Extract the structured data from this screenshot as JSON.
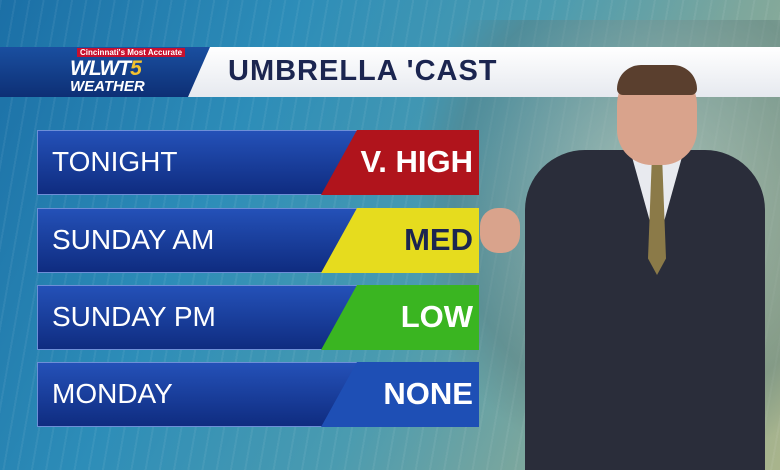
{
  "logo": {
    "tagline": "Cincinnati's Most Accurate",
    "name": "WLWT",
    "channel": "5",
    "sub": "WEATHER"
  },
  "title": "UMBRELLA 'CAST",
  "rows": [
    {
      "label": "TONIGHT",
      "value": "V. HIGH",
      "color": "#b0141c",
      "text_color": "#ffffff"
    },
    {
      "label": "SUNDAY AM",
      "value": "MED",
      "color": "#e6dc1e",
      "text_color": "#1b2550"
    },
    {
      "label": "SUNDAY PM",
      "value": "LOW",
      "color": "#3ab521",
      "text_color": "#ffffff"
    },
    {
      "label": "MONDAY",
      "value": "NONE",
      "color": "#1e4fb5",
      "text_color": "#ffffff"
    }
  ]
}
